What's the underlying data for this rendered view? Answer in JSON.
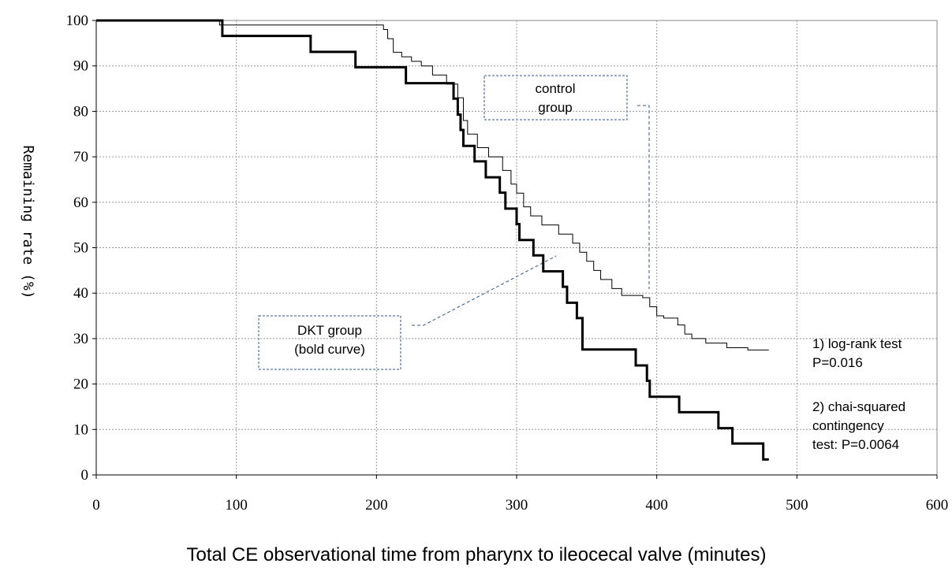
{
  "chart_data": {
    "type": "step",
    "xlabel": "Total CE observational time from pharynx to ileocecal valve (minutes)",
    "ylabel": "Remaining rate (%)",
    "xlim": [
      0,
      600
    ],
    "xticks": [
      0,
      100,
      200,
      300,
      400,
      500,
      600
    ],
    "ylim": [
      0,
      100
    ],
    "yticks": [
      0,
      10,
      20,
      30,
      40,
      50,
      60,
      70,
      80,
      90,
      100
    ],
    "grid": true,
    "series": [
      {
        "name": "control group",
        "color": "#000000",
        "width": 1,
        "x": [
          0,
          88,
          205,
          208,
          212,
          218,
          225,
          232,
          240,
          250,
          258,
          262,
          265,
          272,
          280,
          290,
          296,
          300,
          305,
          310,
          318,
          330,
          340,
          345,
          350,
          355,
          360,
          368,
          375,
          390,
          395,
          400,
          405,
          415,
          420,
          425,
          435,
          450,
          465,
          480
        ],
        "values": [
          100,
          99,
          98,
          96,
          93,
          92,
          91,
          90,
          88,
          86,
          83,
          78,
          75,
          72,
          70,
          67,
          64,
          62,
          59,
          57,
          55,
          53,
          51,
          49,
          47,
          45,
          43,
          41,
          39.5,
          39,
          37,
          35,
          34.5,
          33,
          31,
          30,
          29,
          28,
          27.5,
          27.5
        ]
      },
      {
        "name": "DKT group (bold curve)",
        "color": "#000000",
        "width": 3,
        "x": [
          0,
          90,
          153,
          185,
          221,
          255,
          258,
          260,
          262,
          270,
          278,
          288,
          292,
          300,
          302,
          312,
          319,
          333,
          336,
          343,
          347,
          385,
          393,
          395,
          416,
          444,
          454,
          476,
          480
        ],
        "values": [
          100,
          96.6,
          93.1,
          89.7,
          86.2,
          82.8,
          79.3,
          75.9,
          72.4,
          69,
          65.5,
          62.1,
          58.6,
          55.2,
          51.7,
          48.3,
          44.8,
          41.4,
          37.9,
          34.5,
          27.6,
          24.1,
          20.7,
          17.2,
          13.8,
          10.3,
          6.9,
          3.4,
          3.4
        ]
      }
    ],
    "annotations": [
      {
        "lines": [
          "control",
          "group"
        ]
      },
      {
        "lines": [
          "DKT group",
          "(bold curve)"
        ]
      },
      {
        "lines": [
          "1) log-rank test",
          "P=0.016"
        ]
      },
      {
        "lines": [
          "2) chai-squared",
          "contingency",
          "test:  P=0.0064"
        ]
      }
    ]
  }
}
